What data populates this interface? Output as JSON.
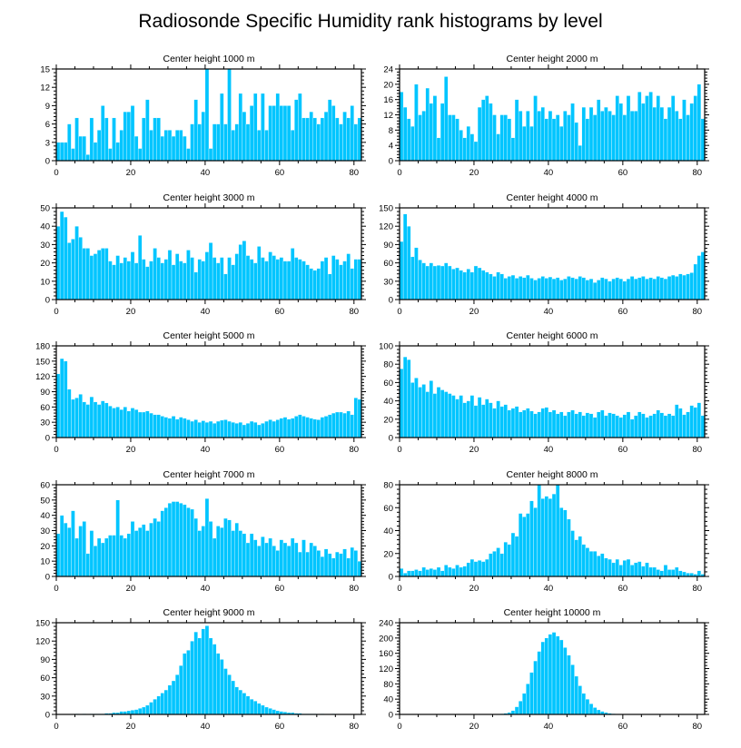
{
  "title": "Radiosonde Specific Humidity rank histograms by level",
  "colors": {
    "bar": "#00c5ff",
    "axis": "#000000",
    "background": "#ffffff"
  },
  "chart_data": [
    {
      "type": "bar",
      "title": "Center height 1000 m",
      "xlim": [
        0,
        82
      ],
      "ylim": [
        0,
        15
      ],
      "xticks": [
        0,
        20,
        40,
        60,
        80
      ],
      "yticks": [
        0,
        3,
        6,
        9,
        12,
        15
      ],
      "values": [
        3,
        3,
        3,
        6,
        2,
        7,
        4,
        4,
        1,
        7,
        3,
        5,
        9,
        7,
        2,
        7,
        3,
        5,
        8,
        8,
        9,
        4,
        2,
        7,
        10,
        5,
        7,
        7,
        4,
        5,
        5,
        4,
        5,
        5,
        4,
        2,
        6,
        10,
        6,
        8,
        15,
        2,
        6,
        6,
        11,
        6,
        15,
        5,
        6,
        11,
        8,
        6,
        9,
        11,
        5,
        11,
        5,
        9,
        9,
        11,
        9,
        9,
        9,
        5,
        10,
        11,
        7,
        7,
        8,
        7,
        6,
        7,
        8,
        10,
        9,
        7,
        6,
        8,
        7,
        9,
        6,
        7
      ]
    },
    {
      "type": "bar",
      "title": "Center height 2000 m",
      "xlim": [
        0,
        82
      ],
      "ylim": [
        0,
        24
      ],
      "xticks": [
        0,
        20,
        40,
        60,
        80
      ],
      "yticks": [
        0,
        4,
        8,
        12,
        16,
        20,
        24
      ],
      "values": [
        18,
        14,
        11,
        9,
        20,
        12,
        13,
        19,
        15,
        17,
        6,
        15,
        22,
        12,
        12,
        11,
        8,
        6,
        9,
        7,
        5,
        14,
        16,
        17,
        15,
        12,
        7,
        12,
        12,
        11,
        6,
        16,
        13,
        9,
        13,
        9,
        17,
        13,
        14,
        11,
        13,
        11,
        12,
        9,
        13,
        12,
        15,
        10,
        4,
        14,
        11,
        14,
        12,
        16,
        13,
        14,
        13,
        12,
        17,
        15,
        12,
        17,
        13,
        13,
        18,
        15,
        17,
        18,
        14,
        17,
        14,
        11,
        14,
        17,
        13,
        11,
        16,
        12,
        15,
        17,
        20,
        11
      ]
    },
    {
      "type": "bar",
      "title": "Center height 3000 m",
      "xlim": [
        0,
        82
      ],
      "ylim": [
        0,
        50
      ],
      "xticks": [
        0,
        20,
        40,
        60,
        80
      ],
      "yticks": [
        0,
        10,
        20,
        30,
        40,
        50
      ],
      "values": [
        40,
        48,
        45,
        31,
        33,
        40,
        34,
        28,
        28,
        24,
        25,
        27,
        28,
        28,
        21,
        19,
        24,
        20,
        23,
        21,
        26,
        20,
        35,
        22,
        18,
        21,
        28,
        23,
        20,
        22,
        27,
        19,
        25,
        21,
        20,
        27,
        23,
        15,
        22,
        21,
        26,
        31,
        23,
        20,
        23,
        14,
        23,
        19,
        25,
        30,
        32,
        24,
        22,
        20,
        29,
        23,
        21,
        26,
        24,
        22,
        23,
        21,
        21,
        28,
        23,
        22,
        21,
        19,
        17,
        16,
        17,
        21,
        23,
        14,
        24,
        22,
        19,
        21,
        25,
        17,
        22,
        22
      ]
    },
    {
      "type": "bar",
      "title": "Center height 4000 m",
      "xlim": [
        0,
        82
      ],
      "ylim": [
        0,
        150
      ],
      "xticks": [
        0,
        20,
        40,
        60,
        80
      ],
      "yticks": [
        0,
        30,
        60,
        90,
        120,
        150
      ],
      "values": [
        95,
        140,
        120,
        70,
        85,
        65,
        60,
        55,
        60,
        55,
        56,
        55,
        60,
        55,
        50,
        52,
        48,
        45,
        50,
        45,
        55,
        52,
        48,
        45,
        42,
        38,
        45,
        42,
        35,
        38,
        40,
        35,
        38,
        36,
        40,
        35,
        32,
        35,
        38,
        35,
        37,
        34,
        36,
        32,
        34,
        38,
        36,
        34,
        38,
        36,
        32,
        34,
        28,
        32,
        36,
        34,
        30,
        34,
        36,
        34,
        30,
        34,
        38,
        34,
        36,
        38,
        34,
        36,
        34,
        38,
        36,
        34,
        38,
        40,
        38,
        42,
        40,
        42,
        44,
        58,
        72,
        78
      ]
    },
    {
      "type": "bar",
      "title": "Center height 5000 m",
      "xlim": [
        0,
        82
      ],
      "ylim": [
        0,
        180
      ],
      "xticks": [
        0,
        20,
        40,
        60,
        80
      ],
      "yticks": [
        0,
        30,
        60,
        90,
        120,
        150,
        180
      ],
      "values": [
        125,
        155,
        150,
        95,
        75,
        78,
        85,
        70,
        65,
        80,
        70,
        65,
        72,
        68,
        62,
        58,
        60,
        55,
        60,
        52,
        58,
        55,
        50,
        50,
        52,
        48,
        45,
        45,
        42,
        40,
        38,
        42,
        36,
        40,
        38,
        35,
        32,
        35,
        30,
        33,
        30,
        32,
        28,
        32,
        34,
        35,
        32,
        30,
        28,
        30,
        25,
        28,
        32,
        30,
        25,
        28,
        32,
        35,
        32,
        35,
        38,
        40,
        36,
        38,
        42,
        45,
        42,
        40,
        38,
        36,
        35,
        40,
        42,
        45,
        48,
        50,
        50,
        48,
        52,
        45,
        78,
        75
      ]
    },
    {
      "type": "bar",
      "title": "Center height 6000 m",
      "xlim": [
        0,
        82
      ],
      "ylim": [
        0,
        100
      ],
      "xticks": [
        0,
        20,
        40,
        60,
        80
      ],
      "yticks": [
        0,
        20,
        40,
        60,
        80,
        100
      ],
      "values": [
        75,
        88,
        85,
        60,
        65,
        55,
        58,
        50,
        62,
        48,
        55,
        52,
        50,
        48,
        46,
        42,
        46,
        38,
        40,
        46,
        35,
        44,
        36,
        42,
        38,
        32,
        40,
        34,
        36,
        30,
        32,
        34,
        28,
        30,
        32,
        29,
        26,
        28,
        32,
        33,
        28,
        30,
        26,
        28,
        24,
        28,
        30,
        26,
        28,
        24,
        27,
        26,
        22,
        28,
        30,
        24,
        27,
        26,
        24,
        22,
        25,
        28,
        20,
        24,
        28,
        26,
        22,
        24,
        26,
        30,
        27,
        24,
        26,
        24,
        36,
        32,
        25,
        28,
        35,
        33,
        38,
        24
      ]
    },
    {
      "type": "bar",
      "title": "Center height 7000 m",
      "xlim": [
        0,
        82
      ],
      "ylim": [
        0,
        60
      ],
      "xticks": [
        0,
        20,
        40,
        60,
        80
      ],
      "yticks": [
        0,
        10,
        20,
        30,
        40,
        50,
        60
      ],
      "values": [
        28,
        40,
        35,
        32,
        43,
        25,
        33,
        36,
        15,
        30,
        20,
        25,
        22,
        25,
        27,
        27,
        50,
        27,
        25,
        28,
        36,
        30,
        32,
        34,
        30,
        35,
        38,
        36,
        43,
        45,
        48,
        49,
        49,
        48,
        47,
        45,
        44,
        38,
        30,
        33,
        51,
        36,
        25,
        33,
        32,
        38,
        37,
        30,
        35,
        30,
        28,
        22,
        28,
        24,
        20,
        26,
        22,
        25,
        20,
        17,
        24,
        22,
        20,
        25,
        22,
        16,
        24,
        16,
        22,
        20,
        17,
        13,
        18,
        15,
        12,
        16,
        15,
        18,
        12,
        19,
        17,
        10
      ]
    },
    {
      "type": "bar",
      "title": "Center height 8000 m",
      "xlim": [
        0,
        82
      ],
      "ylim": [
        0,
        80
      ],
      "xticks": [
        0,
        20,
        40,
        60,
        80
      ],
      "yticks": [
        0,
        20,
        40,
        60,
        80
      ],
      "values": [
        7,
        3,
        5,
        5,
        6,
        5,
        8,
        6,
        7,
        6,
        8,
        5,
        10,
        8,
        7,
        10,
        8,
        9,
        12,
        15,
        13,
        14,
        13,
        15,
        20,
        22,
        25,
        20,
        30,
        28,
        38,
        35,
        55,
        52,
        55,
        66,
        60,
        80,
        68,
        70,
        68,
        72,
        80,
        60,
        58,
        50,
        40,
        32,
        35,
        28,
        25,
        22,
        22,
        18,
        20,
        16,
        15,
        12,
        15,
        10,
        14,
        15,
        10,
        12,
        13,
        9,
        12,
        8,
        8,
        6,
        5,
        10,
        6,
        6,
        8,
        5,
        4,
        3,
        3,
        2,
        5,
        2
      ]
    },
    {
      "type": "bar",
      "title": "Center height 9000 m",
      "xlim": [
        0,
        82
      ],
      "ylim": [
        0,
        150
      ],
      "xticks": [
        0,
        20,
        40,
        60,
        80
      ],
      "yticks": [
        0,
        30,
        60,
        90,
        120,
        150
      ],
      "values": [
        0,
        0,
        0,
        0,
        0,
        1,
        0,
        1,
        0,
        1,
        1,
        1,
        1,
        2,
        2,
        3,
        3,
        5,
        5,
        6,
        7,
        8,
        10,
        12,
        15,
        20,
        25,
        30,
        35,
        40,
        48,
        55,
        65,
        80,
        100,
        105,
        120,
        135,
        125,
        140,
        145,
        125,
        115,
        100,
        90,
        75,
        65,
        55,
        45,
        40,
        35,
        30,
        25,
        22,
        18,
        15,
        12,
        10,
        8,
        6,
        5,
        4,
        3,
        3,
        2,
        2,
        1,
        1,
        1,
        1,
        0,
        1,
        0,
        0,
        1,
        0,
        0,
        0,
        0,
        0,
        0,
        0
      ]
    },
    {
      "type": "bar",
      "title": "Center height 10000 m",
      "xlim": [
        0,
        82
      ],
      "ylim": [
        0,
        240
      ],
      "xticks": [
        0,
        20,
        40,
        60,
        80
      ],
      "yticks": [
        0,
        40,
        80,
        120,
        160,
        200,
        240
      ],
      "values": [
        0,
        0,
        0,
        0,
        0,
        0,
        0,
        0,
        0,
        0,
        0,
        0,
        0,
        0,
        0,
        0,
        0,
        0,
        0,
        0,
        0,
        0,
        0,
        0,
        0,
        1,
        1,
        2,
        3,
        5,
        10,
        20,
        35,
        55,
        80,
        110,
        140,
        165,
        190,
        200,
        210,
        215,
        205,
        195,
        175,
        155,
        130,
        100,
        75,
        55,
        40,
        28,
        18,
        12,
        8,
        5,
        3,
        2,
        1,
        1,
        0,
        0,
        0,
        0,
        0,
        0,
        0,
        0,
        0,
        0,
        0,
        0,
        0,
        0,
        0,
        0,
        0,
        0,
        0,
        0,
        0,
        0
      ]
    }
  ]
}
